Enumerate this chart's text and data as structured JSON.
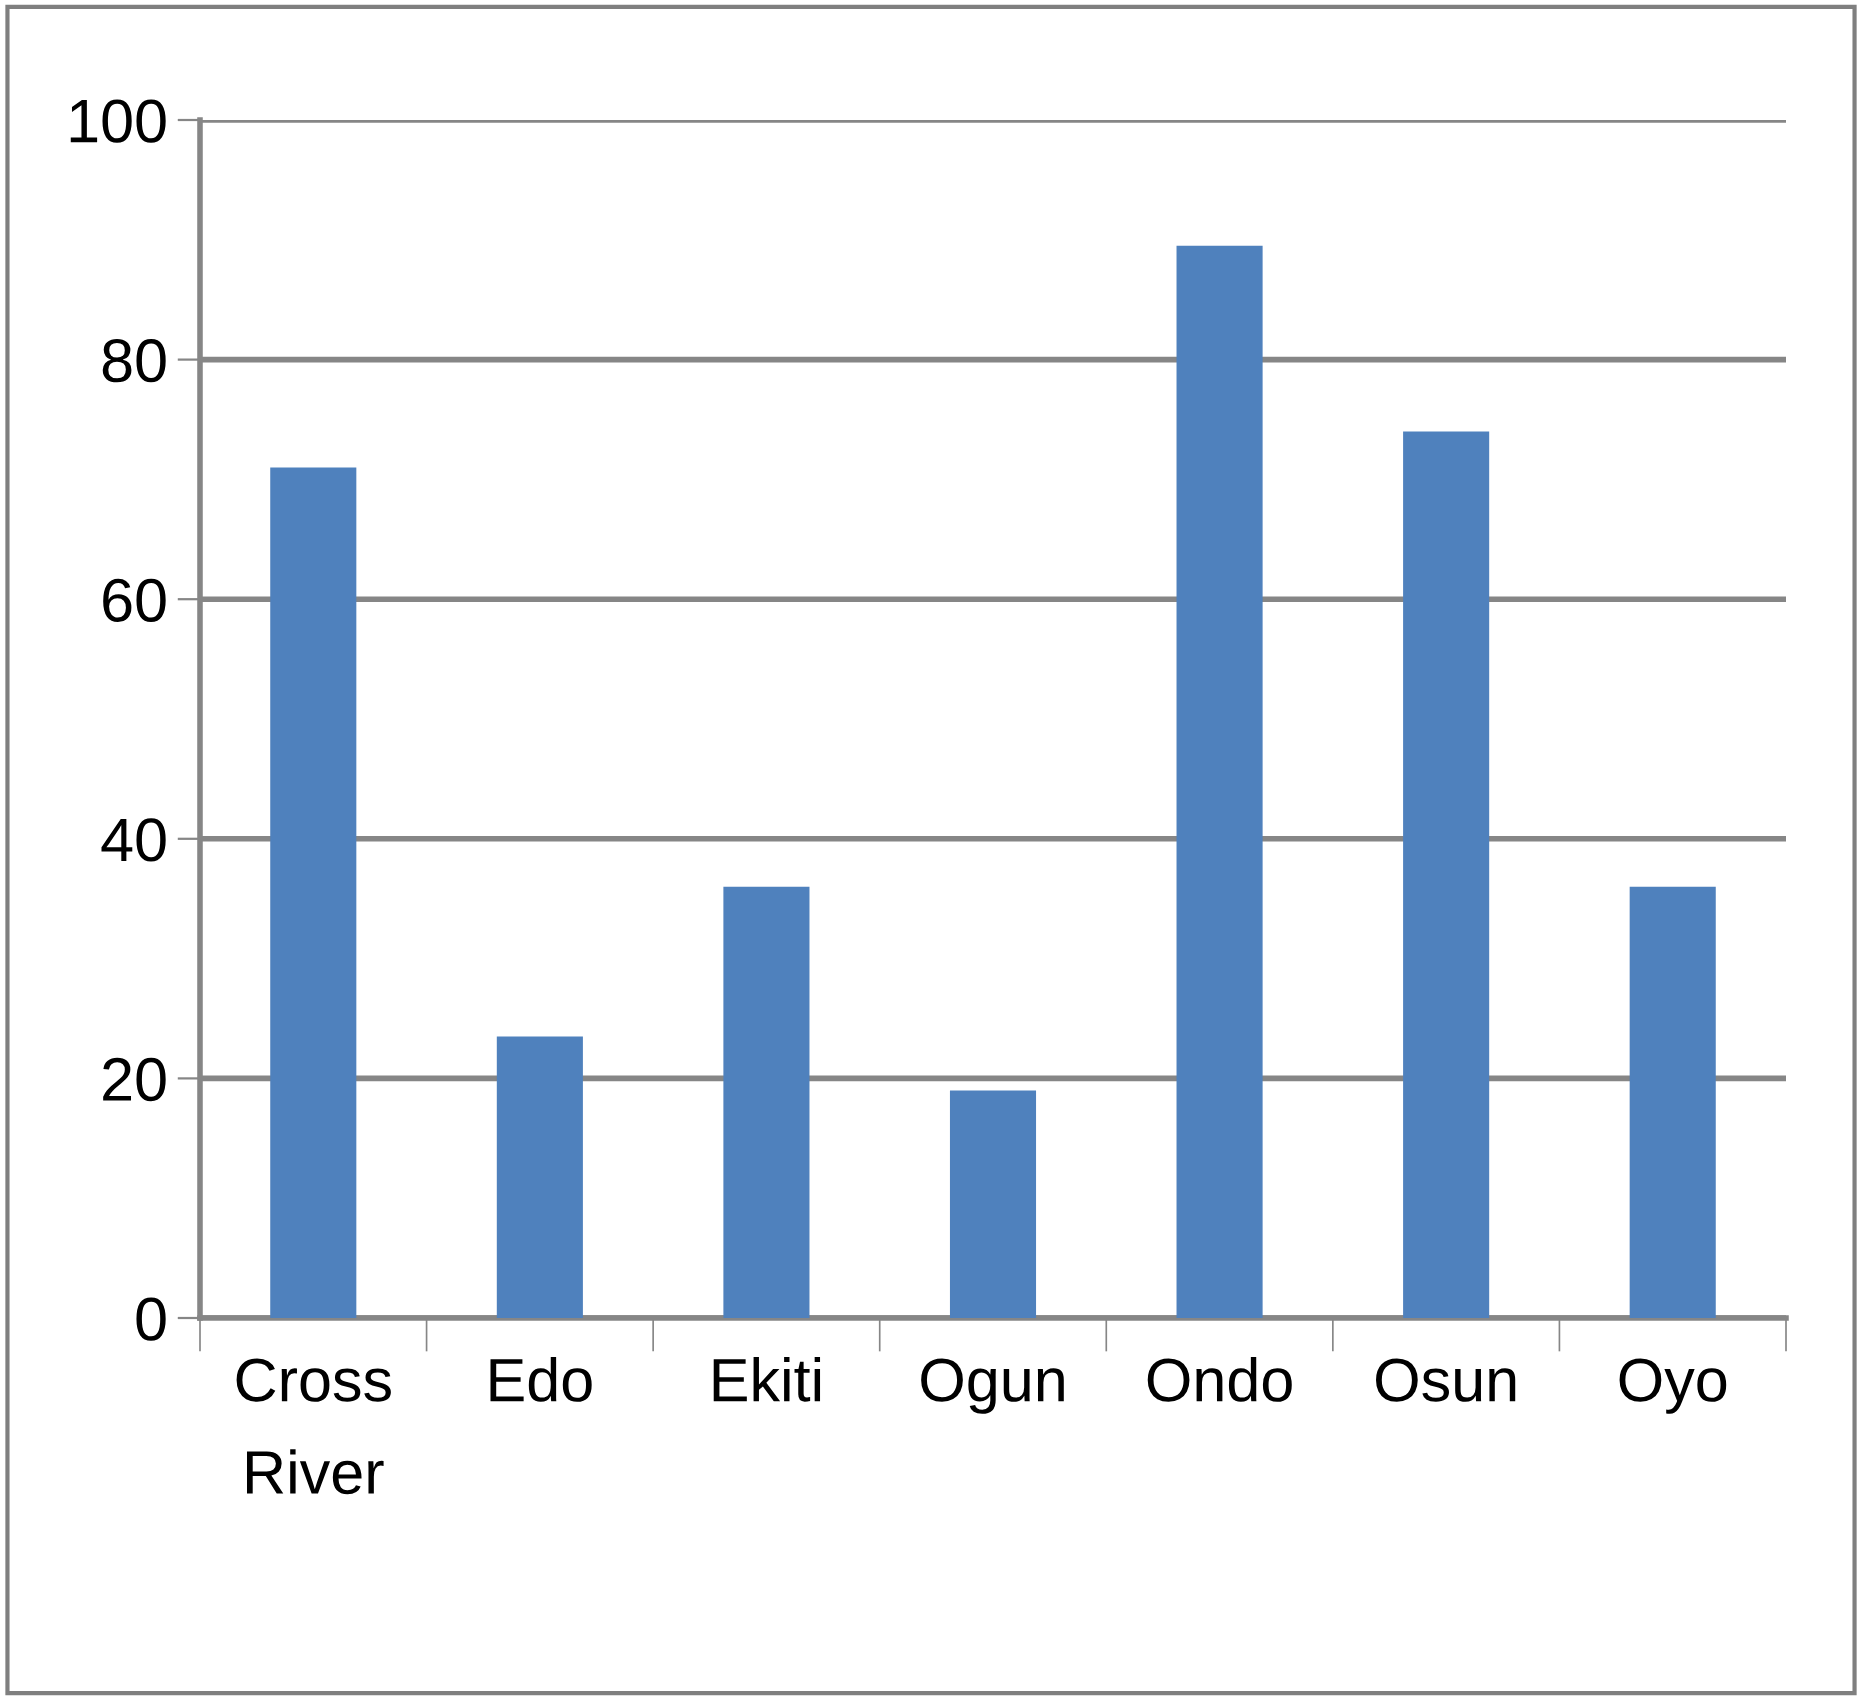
{
  "chart_data": {
    "type": "bar",
    "categories": [
      "Cross\nRiver",
      "Edo",
      "Ekiti",
      "Ogun",
      "Ondo",
      "Osun",
      "Oyo"
    ],
    "values": [
      71,
      23.5,
      36,
      19,
      89.5,
      74,
      36
    ],
    "color": "#4f81bd",
    "ylim": [
      0,
      100
    ],
    "yticks": [
      0,
      20,
      40,
      60,
      80,
      100
    ],
    "grid": "y"
  }
}
